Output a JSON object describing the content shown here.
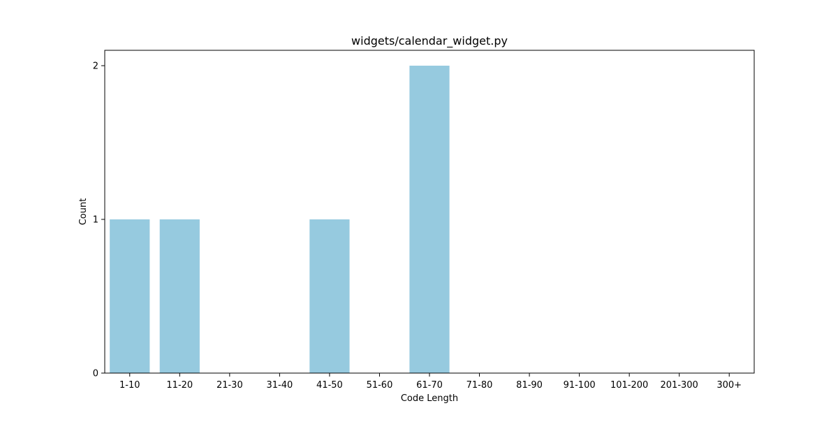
{
  "chart_data": {
    "type": "bar",
    "title": "widgets/calendar_widget.py",
    "xlabel": "Code Length",
    "ylabel": "Count",
    "categories": [
      "1-10",
      "11-20",
      "21-30",
      "31-40",
      "41-50",
      "51-60",
      "61-70",
      "71-80",
      "81-90",
      "91-100",
      "101-200",
      "201-300",
      "300+"
    ],
    "values": [
      1,
      1,
      0,
      0,
      1,
      0,
      2,
      0,
      0,
      0,
      0,
      0,
      0
    ],
    "ylim": [
      0,
      2.1
    ],
    "yticks": [
      0,
      1,
      2
    ],
    "grid": false,
    "bar_color": "#96cadf"
  }
}
